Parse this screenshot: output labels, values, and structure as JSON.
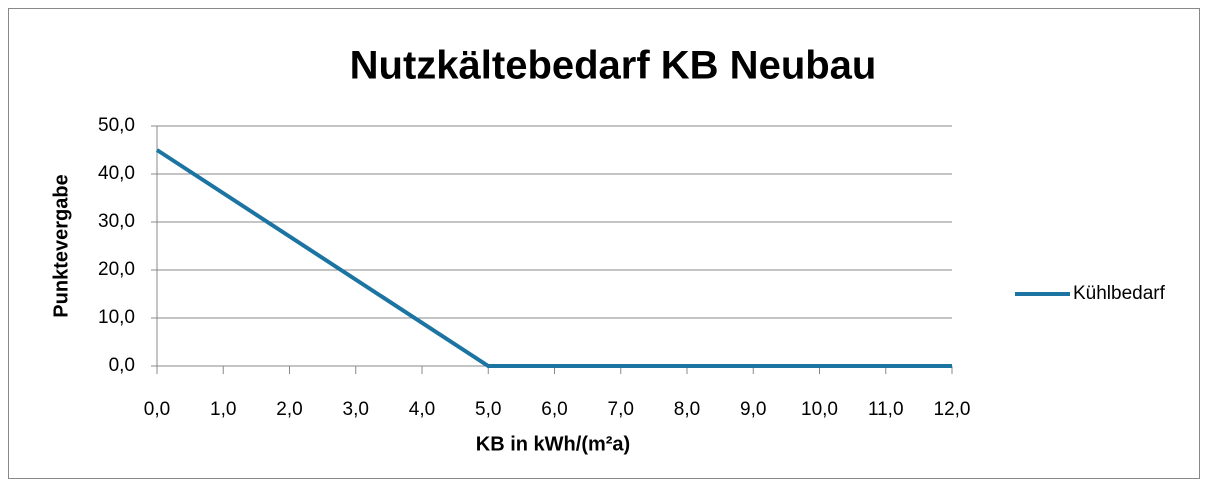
{
  "chart_data": {
    "type": "line",
    "title": "Nutzkältebedarf KB Neubau",
    "xlabel": "KB in kWh/(m²a)",
    "ylabel": "Punktevergabe",
    "x": [
      0,
      5,
      12
    ],
    "series": [
      {
        "name": "Kühlbedarf",
        "color": "#1b74a2",
        "values": [
          45,
          0,
          0
        ]
      }
    ],
    "xlim": [
      0,
      12
    ],
    "xticks": [
      {
        "value": 0,
        "label": "0,0"
      },
      {
        "value": 1,
        "label": "1,0"
      },
      {
        "value": 2,
        "label": "2,0"
      },
      {
        "value": 3,
        "label": "3,0"
      },
      {
        "value": 4,
        "label": "4,0"
      },
      {
        "value": 5,
        "label": "5,0"
      },
      {
        "value": 6,
        "label": "6,0"
      },
      {
        "value": 7,
        "label": "7,0"
      },
      {
        "value": 8,
        "label": "8,0"
      },
      {
        "value": 9,
        "label": "9,0"
      },
      {
        "value": 10,
        "label": "10,0"
      },
      {
        "value": 11,
        "label": "11,0"
      },
      {
        "value": 12,
        "label": "12,0"
      }
    ],
    "ylim": [
      0,
      50
    ],
    "yticks": [
      {
        "value": 0,
        "label": "0,0"
      },
      {
        "value": 10,
        "label": "10,0"
      },
      {
        "value": 20,
        "label": "20,0"
      },
      {
        "value": 30,
        "label": "30,0"
      },
      {
        "value": 40,
        "label": "40,0"
      },
      {
        "value": 50,
        "label": "50,0"
      }
    ],
    "grid": true,
    "legend": "right"
  }
}
